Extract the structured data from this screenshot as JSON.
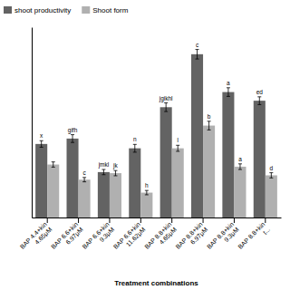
{
  "chart_data": {
    "type": "bar",
    "categories": [
      "BAP 4.4+kin\n4.65μM",
      "BAP 6.6+kin\n6.97μM",
      "BAP 6.6+kin\n9.3μM",
      "BAP 6.6+kin\n11.62μM",
      "BAP 8.8+kin\n4.65μM",
      "BAP 8.8+kin\n6.97μM",
      "BAP 8.8+kin\n9.3μM",
      "BAP 8.8+kin\nt..."
    ],
    "xlabel": "Treatment combinations",
    "series": [
      {
        "name": "shoot productivity",
        "color": "#636363",
        "values": [
          3.4,
          3.65,
          2.1,
          3.2,
          5.1,
          7.55,
          5.8,
          5.4
        ],
        "errors": [
          0.15,
          0.18,
          0.12,
          0.18,
          0.2,
          0.22,
          0.2,
          0.18
        ],
        "labels": [
          "x",
          "gifh",
          "jmkl",
          "n",
          "jgikhl",
          "c",
          "a",
          "ed"
        ]
      },
      {
        "name": "Shoot form",
        "color": "#b0b0b0",
        "values": [
          2.45,
          1.75,
          2.05,
          1.15,
          3.2,
          4.25,
          2.35,
          1.95
        ],
        "errors": [
          0.12,
          0.1,
          0.12,
          0.1,
          0.14,
          0.2,
          0.13,
          0.12
        ],
        "labels": [
          null,
          "c",
          "jk",
          "h",
          "l",
          "b",
          "a",
          "d"
        ]
      }
    ],
    "ylim": [
      0,
      8.8
    ],
    "tick_labels": "x",
    "legend": "upper left"
  }
}
